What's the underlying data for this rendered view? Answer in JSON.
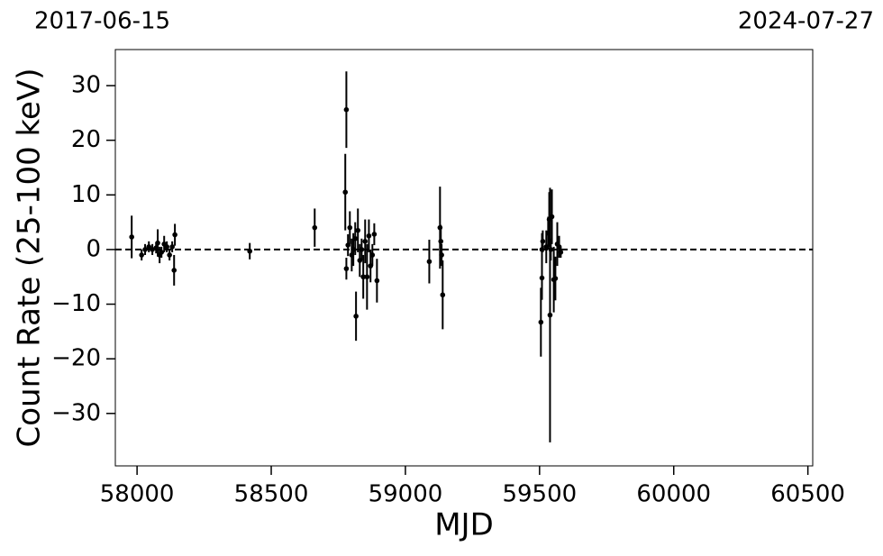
{
  "chart_data": {
    "type": "errorbar",
    "annotations": [
      "2017-06-15",
      "2024-07-27"
    ],
    "x_label": "MJD",
    "y_label": "Count Rate (25-100 keV)",
    "xlim": [
      57919,
      60518
    ],
    "ylim": [
      -39.6,
      36.6
    ],
    "xticks": [
      58000,
      58500,
      59000,
      59500,
      60000,
      60500
    ],
    "yticks": [
      {
        "value": -30,
        "label": "−30"
      },
      {
        "value": -20,
        "label": "−20"
      },
      {
        "value": -10,
        "label": "−10"
      },
      0,
      10,
      20,
      30
    ],
    "hline": 0,
    "color": "#000000",
    "x": [
      57980,
      58017,
      58030,
      58044,
      58057,
      58071,
      58077,
      58084,
      58091,
      58101,
      58111,
      58121,
      58131,
      58138,
      58141,
      58420,
      58662,
      58776,
      58780,
      58780,
      58786,
      58793,
      58800,
      58806,
      58813,
      58816,
      58823,
      58830,
      58837,
      58843,
      58850,
      58857,
      58864,
      58870,
      58877,
      58884,
      58894,
      59089,
      59129,
      59132,
      59135,
      59139,
      59505,
      59509,
      59509,
      59512,
      59525,
      59532,
      59536,
      59539,
      59542,
      59546,
      59553,
      59559,
      59566,
      59573,
      59579
    ],
    "values": [
      2.3,
      -1,
      0,
      0.5,
      0,
      0.3,
      1.2,
      -1,
      -0.5,
      1,
      0.5,
      -1,
      0.5,
      -3.8,
      2.7,
      -0.3,
      4,
      10.5,
      25.6,
      -3.5,
      0.8,
      4,
      -1,
      0,
      2,
      -12.2,
      3.5,
      -2,
      0,
      -5,
      1.5,
      -5,
      2.5,
      -3,
      -1,
      2.8,
      -5.7,
      -2.2,
      4,
      1.5,
      -1,
      -8.3,
      -13.3,
      -5.2,
      0,
      1.5,
      0.5,
      3,
      5.5,
      -12,
      0,
      6,
      -5.5,
      -5.3,
      1,
      0.5,
      -0.5
    ],
    "errors": [
      3.9,
      1,
      1,
      1,
      1,
      1,
      2.5,
      1.5,
      1,
      1.5,
      1,
      1,
      1,
      2.8,
      2,
      1.5,
      3.5,
      7,
      7,
      2,
      2,
      3,
      3,
      3,
      3,
      4.5,
      4,
      3,
      2,
      4,
      4,
      6,
      3,
      3,
      2,
      2,
      4,
      4,
      7.5,
      3,
      2,
      6.3,
      6.3,
      4,
      3,
      2,
      3,
      3,
      5,
      23.3,
      2,
      5,
      6,
      4,
      4,
      2,
      1
    ]
  }
}
